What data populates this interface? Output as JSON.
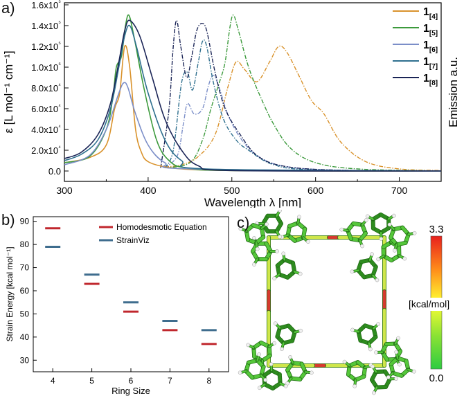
{
  "panel_a": {
    "label": "a)",
    "chart_data": {
      "type": "line",
      "title": "",
      "xlabel": "Wavelength λ [nm]",
      "ylabel": "ε [L mol⁻¹ cm⁻¹]",
      "y2label": "Emission a.u.",
      "xlim": [
        300,
        750
      ],
      "ylim": [
        -10000,
        162000
      ],
      "x_ticks": [
        "300",
        "400",
        "500",
        "600",
        "700"
      ],
      "x_tick_values": [
        300,
        400,
        500,
        600,
        700
      ],
      "y_ticks": [
        "0.0",
        "2.0x10⁴",
        "4.0x10⁴",
        "6.0x10⁴",
        "8.0x10⁴",
        "1.0x10⁵",
        "1.2x10⁵",
        "1.4x10⁵",
        "1.6x10⁵"
      ],
      "y_tick_values": [
        0,
        20000,
        40000,
        60000,
        80000,
        100000,
        120000,
        140000,
        160000
      ],
      "legend_position": "top-right",
      "series": [
        {
          "name": "1[4]",
          "base": "1",
          "sub": "[4]",
          "color": "#d9922b",
          "absorption": [
            [
              300,
              8000
            ],
            [
              330,
              13000
            ],
            [
              350,
              25000
            ],
            [
              360,
              60000
            ],
            [
              366,
              75000
            ],
            [
              372,
              120000
            ],
            [
              378,
              100000
            ],
            [
              385,
              40000
            ],
            [
              392,
              18000
            ],
            [
              400,
              9000
            ],
            [
              420,
              4000
            ],
            [
              450,
              1500
            ],
            [
              500,
              500
            ],
            [
              600,
              0
            ],
            [
              750,
              0
            ]
          ],
          "emission": [
            [
              420,
              4000
            ],
            [
              440,
              6000
            ],
            [
              460,
              14000
            ],
            [
              480,
              35000
            ],
            [
              495,
              80000
            ],
            [
              505,
              105000
            ],
            [
              515,
              98000
            ],
            [
              530,
              86000
            ],
            [
              545,
              105000
            ],
            [
              556,
              120000
            ],
            [
              566,
              114000
            ],
            [
              580,
              92000
            ],
            [
              595,
              68000
            ],
            [
              610,
              55000
            ],
            [
              630,
              28000
            ],
            [
              660,
              9000
            ],
            [
              700,
              2000
            ],
            [
              750,
              500
            ]
          ]
        },
        {
          "name": "1[5]",
          "base": "1",
          "sub": "[5]",
          "color": "#3c9a3c",
          "absorption": [
            [
              300,
              8000
            ],
            [
              330,
              14000
            ],
            [
              350,
              40000
            ],
            [
              358,
              72000
            ],
            [
              362,
              100000
            ],
            [
              368,
              110000
            ],
            [
              373,
              140000
            ],
            [
              377,
              150000
            ],
            [
              383,
              130000
            ],
            [
              395,
              80000
            ],
            [
              410,
              30000
            ],
            [
              425,
              10000
            ],
            [
              445,
              3000
            ],
            [
              500,
              500
            ],
            [
              750,
              0
            ]
          ],
          "emission": [
            [
              420,
              3000
            ],
            [
              450,
              8000
            ],
            [
              465,
              30000
            ],
            [
              475,
              60000
            ],
            [
              485,
              85000
            ],
            [
              492,
              105000
            ],
            [
              498,
              140000
            ],
            [
              502,
              150000
            ],
            [
              508,
              135000
            ],
            [
              520,
              100000
            ],
            [
              535,
              70000
            ],
            [
              550,
              45000
            ],
            [
              570,
              22000
            ],
            [
              600,
              8000
            ],
            [
              650,
              2000
            ],
            [
              750,
              0
            ]
          ]
        },
        {
          "name": "1[6]",
          "base": "1",
          "sub": "[6]",
          "color": "#7b8ec8",
          "absorption": [
            [
              300,
              6000
            ],
            [
              330,
              15000
            ],
            [
              350,
              40000
            ],
            [
              365,
              75000
            ],
            [
              371,
              85000
            ],
            [
              376,
              80000
            ],
            [
              385,
              55000
            ],
            [
              400,
              25000
            ],
            [
              420,
              8000
            ],
            [
              450,
              2000
            ],
            [
              750,
              0
            ]
          ],
          "emission": [
            [
              420,
              3000
            ],
            [
              435,
              15000
            ],
            [
              442,
              45000
            ],
            [
              447,
              65000
            ],
            [
              455,
              55000
            ],
            [
              465,
              60000
            ],
            [
              472,
              82000
            ],
            [
              478,
              92000
            ],
            [
              485,
              80000
            ],
            [
              495,
              55000
            ],
            [
              510,
              32000
            ],
            [
              530,
              15000
            ],
            [
              560,
              5000
            ],
            [
              620,
              1000
            ],
            [
              750,
              0
            ]
          ]
        },
        {
          "name": "1[7]",
          "base": "1",
          "sub": "[7]",
          "color": "#2e6f8e",
          "absorption": [
            [
              300,
              10000
            ],
            [
              320,
              16000
            ],
            [
              340,
              30000
            ],
            [
              355,
              60000
            ],
            [
              365,
              100000
            ],
            [
              372,
              130000
            ],
            [
              378,
              140000
            ],
            [
              386,
              120000
            ],
            [
              400,
              75000
            ],
            [
              420,
              30000
            ],
            [
              440,
              10000
            ],
            [
              470,
              2000
            ],
            [
              750,
              0
            ]
          ],
          "emission": [
            [
              420,
              3000
            ],
            [
              430,
              20000
            ],
            [
              440,
              85000
            ],
            [
              447,
              95000
            ],
            [
              453,
              78000
            ],
            [
              460,
              105000
            ],
            [
              465,
              125000
            ],
            [
              470,
              120000
            ],
            [
              478,
              85000
            ],
            [
              490,
              50000
            ],
            [
              505,
              30000
            ],
            [
              520,
              20000
            ],
            [
              550,
              6000
            ],
            [
              600,
              1000
            ],
            [
              750,
              0
            ]
          ]
        },
        {
          "name": "1[8]",
          "base": "1",
          "sub": "[8]",
          "color": "#1a2456",
          "absorption": [
            [
              300,
              12000
            ],
            [
              320,
              18000
            ],
            [
              340,
              35000
            ],
            [
              355,
              65000
            ],
            [
              365,
              105000
            ],
            [
              372,
              135000
            ],
            [
              378,
              145000
            ],
            [
              390,
              130000
            ],
            [
              405,
              90000
            ],
            [
              420,
              50000
            ],
            [
              440,
              20000
            ],
            [
              460,
              5000
            ],
            [
              500,
              500
            ],
            [
              750,
              0
            ]
          ],
          "emission": [
            [
              415,
              3000
            ],
            [
              425,
              60000
            ],
            [
              430,
              120000
            ],
            [
              434,
              145000
            ],
            [
              439,
              120000
            ],
            [
              446,
              90000
            ],
            [
              452,
              110000
            ],
            [
              458,
              135000
            ],
            [
              464,
              142000
            ],
            [
              470,
              135000
            ],
            [
              480,
              95000
            ],
            [
              492,
              60000
            ],
            [
              510,
              35000
            ],
            [
              530,
              15000
            ],
            [
              560,
              5000
            ],
            [
              620,
              1000
            ],
            [
              750,
              0
            ]
          ]
        }
      ]
    }
  },
  "panel_b": {
    "label": "b)",
    "chart_data": {
      "type": "scatter",
      "title": "",
      "xlabel": "Ring Size",
      "ylabel": "Strain Energy [kcal mol⁻¹]",
      "categories": [
        "4",
        "5",
        "6",
        "7",
        "8"
      ],
      "ylim": [
        25,
        92
      ],
      "y_ticks": [
        "30",
        "40",
        "50",
        "60",
        "70",
        "80",
        "90"
      ],
      "y_tick_values": [
        30,
        40,
        50,
        60,
        70,
        80,
        90
      ],
      "legend_position": "top-right",
      "series": [
        {
          "name": "Homodesmotic Equation",
          "color": "#c0272d",
          "values": [
            87,
            63,
            51,
            43,
            37
          ]
        },
        {
          "name": "StrainViz",
          "color": "#3f6d8e",
          "values": [
            79,
            67,
            55,
            47,
            43
          ]
        }
      ]
    }
  },
  "panel_c": {
    "label": "c)",
    "colorbar": {
      "max_label": "3.3",
      "min_label": "0.0",
      "unit": "[kcal/mol]",
      "colors": [
        "#2ecc40",
        "#8ae234",
        "#ffff33",
        "#ff8c1a",
        "#e8201c"
      ]
    },
    "colors": {
      "ring": "#55c73a",
      "ring_dark": "#2e8c1f",
      "linker": "#cfe64a",
      "strained": "#d63a2e",
      "hydrogen": "#f0f0f0"
    }
  }
}
